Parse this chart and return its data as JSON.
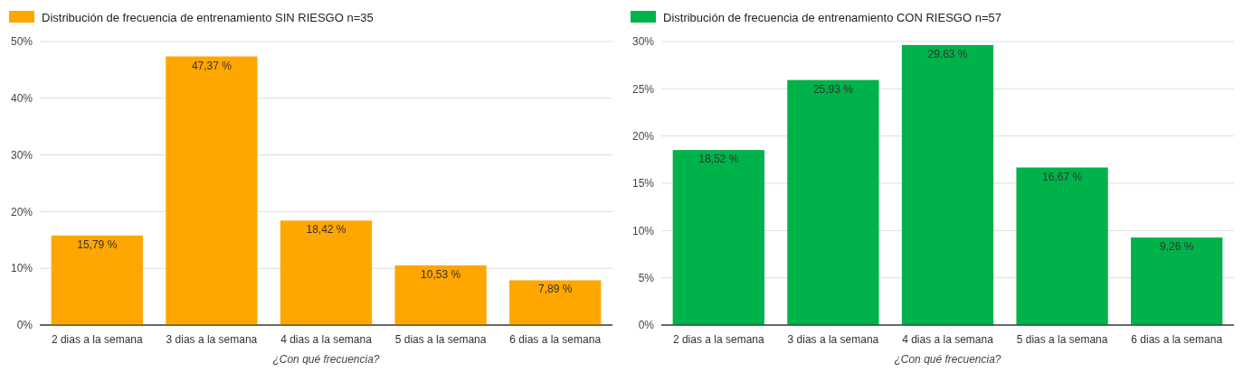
{
  "chart_data": [
    {
      "type": "bar",
      "xlabel": "¿Con qué frecuencia?",
      "categories": [
        "2 dias a la semana",
        "3 dias a la semana",
        "4 dias a la semana",
        "5 dias a la semana",
        "6 dias a la semana"
      ],
      "series": [
        {
          "name": "Distribución de frecuencia de entrenamiento SIN RIESGO n=35",
          "color": "#ffa600",
          "values": [
            15.79,
            47.37,
            18.42,
            10.53,
            7.89
          ],
          "value_labels": [
            "15,79 %",
            "47,37 %",
            "18,42 %",
            "10,53 %",
            "7,89 %"
          ]
        }
      ],
      "ylim": [
        0,
        50
      ],
      "yticks": [
        {
          "value": 0,
          "label": "0%"
        },
        {
          "value": 10,
          "label": "10%"
        },
        {
          "value": 20,
          "label": "20%"
        },
        {
          "value": 30,
          "label": "30%"
        },
        {
          "value": 40,
          "label": "40%"
        },
        {
          "value": 50,
          "label": "50%"
        }
      ],
      "grid": "y",
      "legend": "top left"
    },
    {
      "type": "bar",
      "xlabel": "¿Con qué frecuencia?",
      "categories": [
        "2 dias a la semana",
        "3 dias a la semana",
        "4 dias a la semana",
        "5 dias a la semana",
        "6 dias a la semana"
      ],
      "series": [
        {
          "name": "Distribución de frecuencia de entrenamiento CON RIESGO n=57",
          "color": "#00b24a",
          "values": [
            18.52,
            25.93,
            29.63,
            16.67,
            9.26
          ],
          "value_labels": [
            "18,52 %",
            "25,93 %",
            "29,63 %",
            "16,67 %",
            "9,26 %"
          ]
        }
      ],
      "ylim": [
        0,
        30
      ],
      "yticks": [
        {
          "value": 0,
          "label": "0%"
        },
        {
          "value": 5,
          "label": "5%"
        },
        {
          "value": 10,
          "label": "10%"
        },
        {
          "value": 15,
          "label": "15%"
        },
        {
          "value": 20,
          "label": "20%"
        },
        {
          "value": 25,
          "label": "25%"
        },
        {
          "value": 30,
          "label": "30%"
        }
      ],
      "grid": "y",
      "legend": "top left"
    }
  ]
}
